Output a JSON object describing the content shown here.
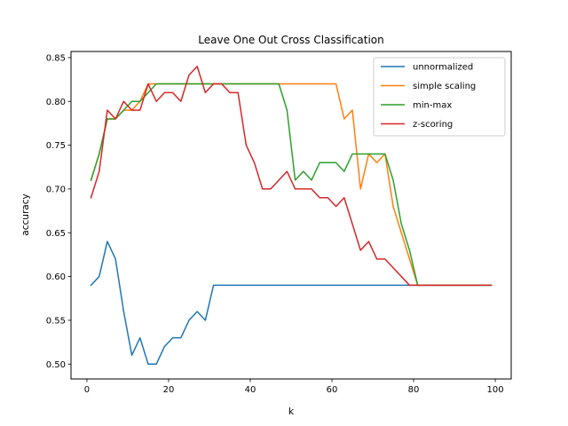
{
  "chart_data": {
    "type": "line",
    "title": "Leave One Out Cross Classification",
    "xlabel": "k",
    "ylabel": "accuracy",
    "xlim": [
      -3.9,
      103.9
    ],
    "ylim": [
      0.483,
      0.857
    ],
    "xticks": [
      0,
      20,
      40,
      60,
      80,
      100
    ],
    "yticks": [
      0.5,
      0.55,
      0.6,
      0.65,
      0.7,
      0.75,
      0.8,
      0.85
    ],
    "grid": false,
    "legend_position": "top-right",
    "series": [
      {
        "name": "unnormalized",
        "color": "#1f77b4",
        "x": [
          1,
          3,
          5,
          7,
          9,
          11,
          13,
          15,
          17,
          19,
          21,
          23,
          25,
          27,
          29,
          31,
          33,
          35,
          37,
          39,
          41,
          43,
          45,
          47,
          49,
          51,
          53,
          55,
          57,
          59,
          61,
          63,
          65,
          67,
          69,
          71,
          73,
          75,
          77,
          79,
          81,
          83,
          85,
          87,
          89,
          91,
          93,
          95,
          97,
          99
        ],
        "y": [
          0.59,
          0.6,
          0.64,
          0.62,
          0.56,
          0.51,
          0.53,
          0.5,
          0.5,
          0.52,
          0.53,
          0.53,
          0.55,
          0.56,
          0.55,
          0.59,
          0.59,
          0.59,
          0.59,
          0.59,
          0.59,
          0.59,
          0.59,
          0.59,
          0.59,
          0.59,
          0.59,
          0.59,
          0.59,
          0.59,
          0.59,
          0.59,
          0.59,
          0.59,
          0.59,
          0.59,
          0.59,
          0.59,
          0.59,
          0.59,
          0.59,
          0.59,
          0.59,
          0.59,
          0.59,
          0.59,
          0.59,
          0.59,
          0.59,
          0.59
        ]
      },
      {
        "name": "simple scaling",
        "color": "#ff7f0e",
        "x": [
          1,
          3,
          5,
          7,
          9,
          11,
          13,
          15,
          17,
          19,
          21,
          23,
          25,
          27,
          29,
          31,
          33,
          35,
          37,
          39,
          41,
          43,
          45,
          47,
          49,
          51,
          53,
          55,
          57,
          59,
          61,
          63,
          65,
          67,
          69,
          71,
          73,
          75,
          77,
          79,
          81,
          83,
          85,
          87,
          89,
          91,
          93,
          95,
          97,
          99
        ],
        "y": [
          0.71,
          0.74,
          0.78,
          0.78,
          0.79,
          0.79,
          0.8,
          0.82,
          0.82,
          0.82,
          0.82,
          0.82,
          0.82,
          0.82,
          0.82,
          0.82,
          0.82,
          0.82,
          0.82,
          0.82,
          0.82,
          0.82,
          0.82,
          0.82,
          0.82,
          0.82,
          0.82,
          0.82,
          0.82,
          0.82,
          0.82,
          0.78,
          0.79,
          0.7,
          0.74,
          0.73,
          0.74,
          0.68,
          0.65,
          0.62,
          0.59,
          0.59,
          0.59,
          0.59,
          0.59,
          0.59,
          0.59,
          0.59,
          0.59,
          0.59
        ]
      },
      {
        "name": "min-max",
        "color": "#2ca02c",
        "x": [
          1,
          3,
          5,
          7,
          9,
          11,
          13,
          15,
          17,
          19,
          21,
          23,
          25,
          27,
          29,
          31,
          33,
          35,
          37,
          39,
          41,
          43,
          45,
          47,
          49,
          51,
          53,
          55,
          57,
          59,
          61,
          63,
          65,
          67,
          69,
          71,
          73,
          75,
          77,
          79,
          81,
          83,
          85,
          87,
          89,
          91,
          93,
          95,
          97,
          99
        ],
        "y": [
          0.71,
          0.74,
          0.78,
          0.78,
          0.79,
          0.8,
          0.8,
          0.81,
          0.82,
          0.82,
          0.82,
          0.82,
          0.82,
          0.82,
          0.82,
          0.82,
          0.82,
          0.82,
          0.82,
          0.82,
          0.82,
          0.82,
          0.82,
          0.82,
          0.79,
          0.71,
          0.72,
          0.71,
          0.73,
          0.73,
          0.73,
          0.72,
          0.74,
          0.74,
          0.74,
          0.74,
          0.74,
          0.71,
          0.66,
          0.63,
          0.59,
          0.59,
          0.59,
          0.59,
          0.59,
          0.59,
          0.59,
          0.59,
          0.59,
          0.59
        ]
      },
      {
        "name": "z-scoring",
        "color": "#d62728",
        "x": [
          1,
          3,
          5,
          7,
          9,
          11,
          13,
          15,
          17,
          19,
          21,
          23,
          25,
          27,
          29,
          31,
          33,
          35,
          37,
          39,
          41,
          43,
          45,
          47,
          49,
          51,
          53,
          55,
          57,
          59,
          61,
          63,
          65,
          67,
          69,
          71,
          73,
          75,
          77,
          79,
          81,
          83,
          85,
          87,
          89,
          91,
          93,
          95,
          97,
          99
        ],
        "y": [
          0.69,
          0.72,
          0.79,
          0.78,
          0.8,
          0.79,
          0.79,
          0.82,
          0.8,
          0.81,
          0.81,
          0.8,
          0.83,
          0.84,
          0.81,
          0.82,
          0.82,
          0.81,
          0.81,
          0.75,
          0.73,
          0.7,
          0.7,
          0.71,
          0.72,
          0.7,
          0.7,
          0.7,
          0.69,
          0.69,
          0.68,
          0.69,
          0.66,
          0.63,
          0.64,
          0.62,
          0.62,
          0.61,
          0.6,
          0.59,
          0.59,
          0.59,
          0.59,
          0.59,
          0.59,
          0.59,
          0.59,
          0.59,
          0.59,
          0.59
        ]
      }
    ]
  }
}
